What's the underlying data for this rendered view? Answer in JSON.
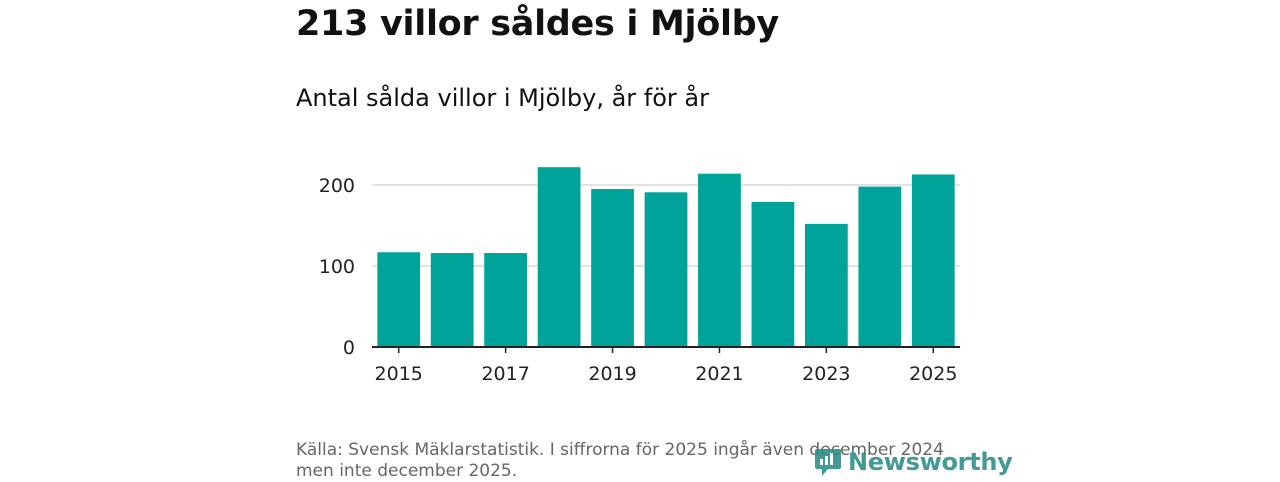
{
  "header": {
    "title": "213 villor såldes i Mjölby",
    "subtitle": "Antal sålda villor i Mjölby, år för år"
  },
  "chart_data": {
    "type": "bar",
    "categories": [
      "2015",
      "2016",
      "2017",
      "2018",
      "2019",
      "2020",
      "2021",
      "2022",
      "2023",
      "2024",
      "2025"
    ],
    "values": [
      117,
      116,
      116,
      222,
      195,
      191,
      214,
      179,
      152,
      198,
      213
    ],
    "x_tick_labels": [
      "2015",
      "2017",
      "2019",
      "2021",
      "2023",
      "2025"
    ],
    "y_ticks": [
      0,
      100,
      200
    ],
    "ylim": [
      0,
      230
    ],
    "grid": true,
    "bar_color": "#00a39a"
  },
  "footer": {
    "source": "Källa: Svensk Mäklarstatistik. I siffrorna för 2025 ingår även december 2024 men inte december 2025.",
    "brand": "Newsworthy",
    "brand_color": "#2f8f88"
  }
}
